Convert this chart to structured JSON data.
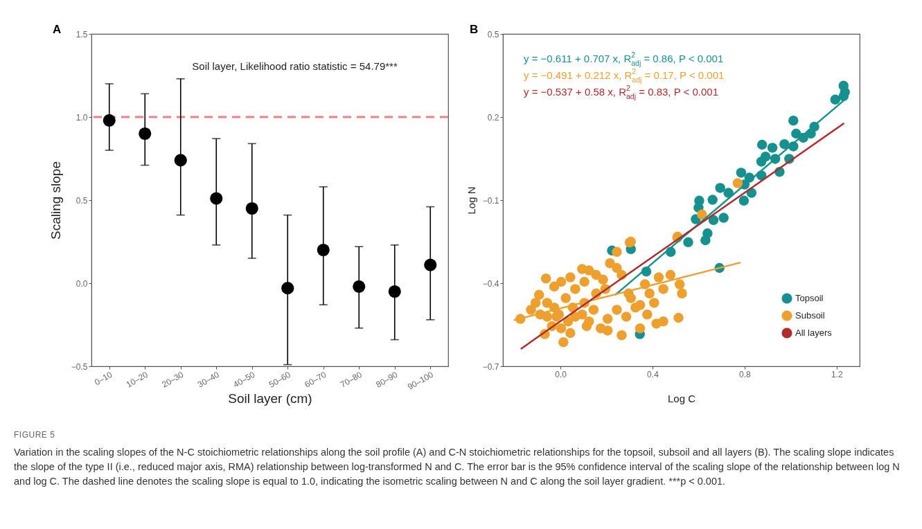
{
  "chart_data": [
    {
      "type": "scatter",
      "title": "A",
      "xlabel": "Soil layer (cm)",
      "ylabel": "Scaling slope",
      "categories": [
        "0–10",
        "10–20",
        "20–30",
        "30–40",
        "40–50",
        "50–60",
        "60–70",
        "70–80",
        "80–90",
        "90–100"
      ],
      "values": [
        0.98,
        0.9,
        0.74,
        0.51,
        0.45,
        -0.03,
        0.2,
        -0.02,
        -0.05,
        0.11
      ],
      "errors": [
        [
          0.8,
          1.2
        ],
        [
          0.71,
          1.14
        ],
        [
          0.41,
          1.23
        ],
        [
          0.23,
          0.87
        ],
        [
          0.15,
          0.84
        ],
        [
          -0.49,
          0.41
        ],
        [
          -0.13,
          0.58
        ],
        [
          -0.27,
          0.22
        ],
        [
          -0.34,
          0.23
        ],
        [
          -0.22,
          0.46
        ]
      ],
      "color": "#000000",
      "marker": "circle",
      "grid": false,
      "legend": false,
      "ylim": [
        -0.5,
        1.5
      ],
      "yticks": [
        {
          "value": -0.5,
          "label": "−0.5"
        },
        {
          "value": 0,
          "label": "0.0"
        },
        0.5,
        {
          "value": 1,
          "label": "1.0"
        },
        1.5
      ],
      "ref_lines": [
        {
          "axis": "y",
          "value": 1.0,
          "label": null,
          "color": "#f08080",
          "line_style": "dashed"
        }
      ],
      "annotations": [
        "Soil layer, Likelihood ratio statistic = 54.79***",
        "FIGURE 5",
        "Variation in the scaling slopes of the N-C stoichiometric relationships along the soil profile (A) and C-N stoichiometric relationships for the topsoil, subsoil and all layers (B). The scaling slope indicates the slope of the type II (i.e., reduced major axis, RMA) relationship between log-transformed N and C. The error bar is the 95% confidence interval of the scaling slope of the relationship between log N and log C. The dashed line denotes the scaling slope is equal to 1.0, indicating the isometric scaling between N and C along the soil layer gradient. ***p < 0.001."
      ]
    },
    {
      "type": "scatter",
      "title": "B",
      "xlabel": "Log C",
      "ylabel": "Log N",
      "grid": false,
      "legend": "bottom right",
      "xlim": [
        -0.25,
        1.3
      ],
      "xticks": [
        {
          "value": 0,
          "label": "0.0"
        },
        0.4,
        0.8,
        1.2
      ],
      "ylim": [
        -0.7,
        0.5
      ],
      "yticks": [
        {
          "value": -0.7,
          "label": "−0.7"
        },
        {
          "value": -0.4,
          "label": "−0.4"
        },
        {
          "value": -0.1,
          "label": "−0.1"
        },
        0.2,
        0.5
      ],
      "series": [
        {
          "name": "Topsoil",
          "marker": "circle",
          "color": "#17918f",
          "x": [
            1.23,
            1.236,
            1.194,
            1.23,
            1.012,
            1.103,
            1.088,
            1.024,
            1.055,
            0.876,
            0.921,
            0.973,
            1.012,
            0.891,
            0.873,
            0.933,
            0.994,
            0.952,
            0.785,
            0.821,
            0.873,
            0.8,
            0.83,
            0.797,
            0.694,
            0.73,
            0.603,
            0.661,
            0.6,
            0.588,
            0.665,
            0.709,
            0.639,
            0.63,
            0.555,
            0.479,
            0.373,
            0.306,
            0.224,
            0.691,
            0.345
          ],
          "values": [
            0.313,
            0.29,
            0.263,
            0.275,
            0.187,
            0.165,
            0.14,
            0.14,
            0.125,
            0.1,
            0.089,
            0.102,
            0.094,
            0.057,
            0.039,
            0.049,
            0.049,
            0.002,
            -0.001,
            -0.019,
            -0.011,
            -0.044,
            -0.074,
            -0.102,
            -0.056,
            -0.074,
            -0.102,
            -0.099,
            -0.127,
            -0.169,
            -0.172,
            -0.164,
            -0.22,
            -0.245,
            -0.252,
            -0.287,
            -0.358,
            -0.277,
            -0.282,
            -0.345,
            -0.584
          ]
        },
        {
          "name": "Subsoil",
          "marker": "circle",
          "color": "#eea02f",
          "x": [
            -0.174,
            -0.063,
            -0.093,
            -0.058,
            -0.027,
            0.003,
            0.043,
            0.094,
            0.124,
            0.064,
            0.104,
            0.155,
            0.185,
            0.023,
            -0.027,
            -0.058,
            -0.007,
            0.054,
            0.104,
            0.155,
            0.195,
            0.144,
            0.094,
            0.033,
            -0.037,
            -0.068,
            0.013,
            0.003,
            0.064,
            0.124,
            0.175,
            0.205,
            0.245,
            0.286,
            0.306,
            0.326,
            0.266,
            0.245,
            0.215,
            0.245,
            0.301,
            0.367,
            0.346,
            0.377,
            0.346,
            0.266,
            0.205,
            0.296,
            0.427,
            0.478,
            0.518,
            0.528,
            0.447,
            0.417,
            0.447,
            0.513,
            0.407,
            0.387,
            0.508,
            -0.128,
            -0.088,
            -0.108,
            -0.017,
            0.043,
            0.114,
            0.77,
            0.509,
            0.306,
            0.615
          ],
          "values": [
            -0.529,
            -0.383,
            -0.442,
            -0.471,
            -0.412,
            -0.395,
            -0.379,
            -0.349,
            -0.354,
            -0.421,
            -0.395,
            -0.37,
            -0.387,
            -0.454,
            -0.488,
            -0.521,
            -0.513,
            -0.488,
            -0.471,
            -0.437,
            -0.421,
            -0.496,
            -0.513,
            -0.538,
            -0.555,
            -0.584,
            -0.613,
            -0.563,
            -0.521,
            -0.538,
            -0.563,
            -0.529,
            -0.496,
            -0.521,
            -0.454,
            -0.488,
            -0.37,
            -0.345,
            -0.328,
            -0.287,
            -0.253,
            -0.404,
            -0.479,
            -0.513,
            -0.563,
            -0.588,
            -0.571,
            -0.437,
            -0.379,
            -0.37,
            -0.404,
            -0.437,
            -0.421,
            -0.546,
            -0.538,
            -0.525,
            -0.471,
            -0.437,
            -0.236,
            -0.496,
            -0.513,
            -0.471,
            -0.521,
            -0.58,
            -0.555,
            -0.039,
            -0.232,
            -0.25,
            -0.152
          ]
        },
        {
          "type": "line",
          "color": "#17918f",
          "x": [
            0.24,
            1.23
          ],
          "values": [
            -0.441,
            0.259
          ]
        },
        {
          "type": "line",
          "color": "#eea02f",
          "x": [
            -0.2,
            0.78
          ],
          "values": [
            -0.533,
            -0.326
          ]
        },
        {
          "name": "All layers",
          "type": "line",
          "color": "#b2292e",
          "x": [
            -0.17,
            1.23
          ],
          "values": [
            -0.636,
            0.176
          ]
        }
      ],
      "annotations": [
        "y = −0.611 + 0.707 x, R$^{2}$$_{adj}$ = 0.86, P < 0.001",
        "y = −0.491 + 0.212 x, R$^{2}$$_{adj}$ = 0.17, P < 0.001",
        "y = −0.537 + 0.58 x, R$^{2}$$_{adj}$ = 0.83, P < 0.001"
      ]
    }
  ]
}
